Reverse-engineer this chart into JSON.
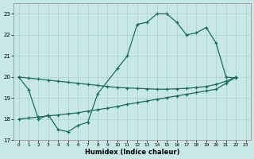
{
  "xlabel": "Humidex (Indice chaleur)",
  "bg_color": "#c8e8e8",
  "grid_color": "#a8d0d0",
  "line_color": "#1a6b5a",
  "xlim": [
    -0.5,
    23.5
  ],
  "ylim": [
    17.0,
    23.5
  ],
  "yticks": [
    17,
    18,
    19,
    20,
    21,
    22,
    23
  ],
  "xticks": [
    0,
    1,
    2,
    3,
    4,
    5,
    6,
    7,
    8,
    9,
    10,
    11,
    12,
    13,
    14,
    15,
    16,
    17,
    18,
    19,
    20,
    21,
    22,
    23
  ],
  "line1_x": [
    0,
    1,
    2,
    3,
    4,
    5,
    6,
    7,
    8,
    10,
    11,
    12,
    13,
    14,
    15,
    16,
    17,
    18,
    19,
    20,
    21,
    22
  ],
  "line1_y": [
    20.0,
    19.4,
    18.0,
    18.2,
    17.5,
    17.4,
    17.7,
    17.85,
    19.2,
    20.4,
    21.0,
    22.5,
    22.6,
    23.0,
    23.0,
    22.6,
    22.0,
    22.1,
    22.35,
    21.6,
    20.0,
    19.95
  ],
  "line2_x": [
    0,
    1,
    2,
    3,
    4,
    5,
    6,
    7,
    8,
    9,
    10,
    11,
    12,
    13,
    14,
    15,
    16,
    17,
    18,
    19,
    20,
    21,
    22
  ],
  "line2_y": [
    18.0,
    18.05,
    18.1,
    18.15,
    18.2,
    18.25,
    18.3,
    18.38,
    18.45,
    18.52,
    18.6,
    18.7,
    18.78,
    18.86,
    18.94,
    19.02,
    19.1,
    19.18,
    19.26,
    19.34,
    19.42,
    19.7,
    20.0
  ],
  "line3_x": [
    0,
    1,
    2,
    3,
    4,
    5,
    6,
    7,
    8,
    9,
    10,
    11,
    12,
    13,
    14,
    15,
    16,
    17,
    18,
    19,
    20,
    21,
    22
  ],
  "line3_y": [
    20.0,
    19.95,
    19.9,
    19.85,
    19.8,
    19.75,
    19.7,
    19.65,
    19.6,
    19.55,
    19.5,
    19.48,
    19.46,
    19.44,
    19.42,
    19.42,
    19.44,
    19.46,
    19.5,
    19.55,
    19.65,
    19.8,
    20.0
  ]
}
